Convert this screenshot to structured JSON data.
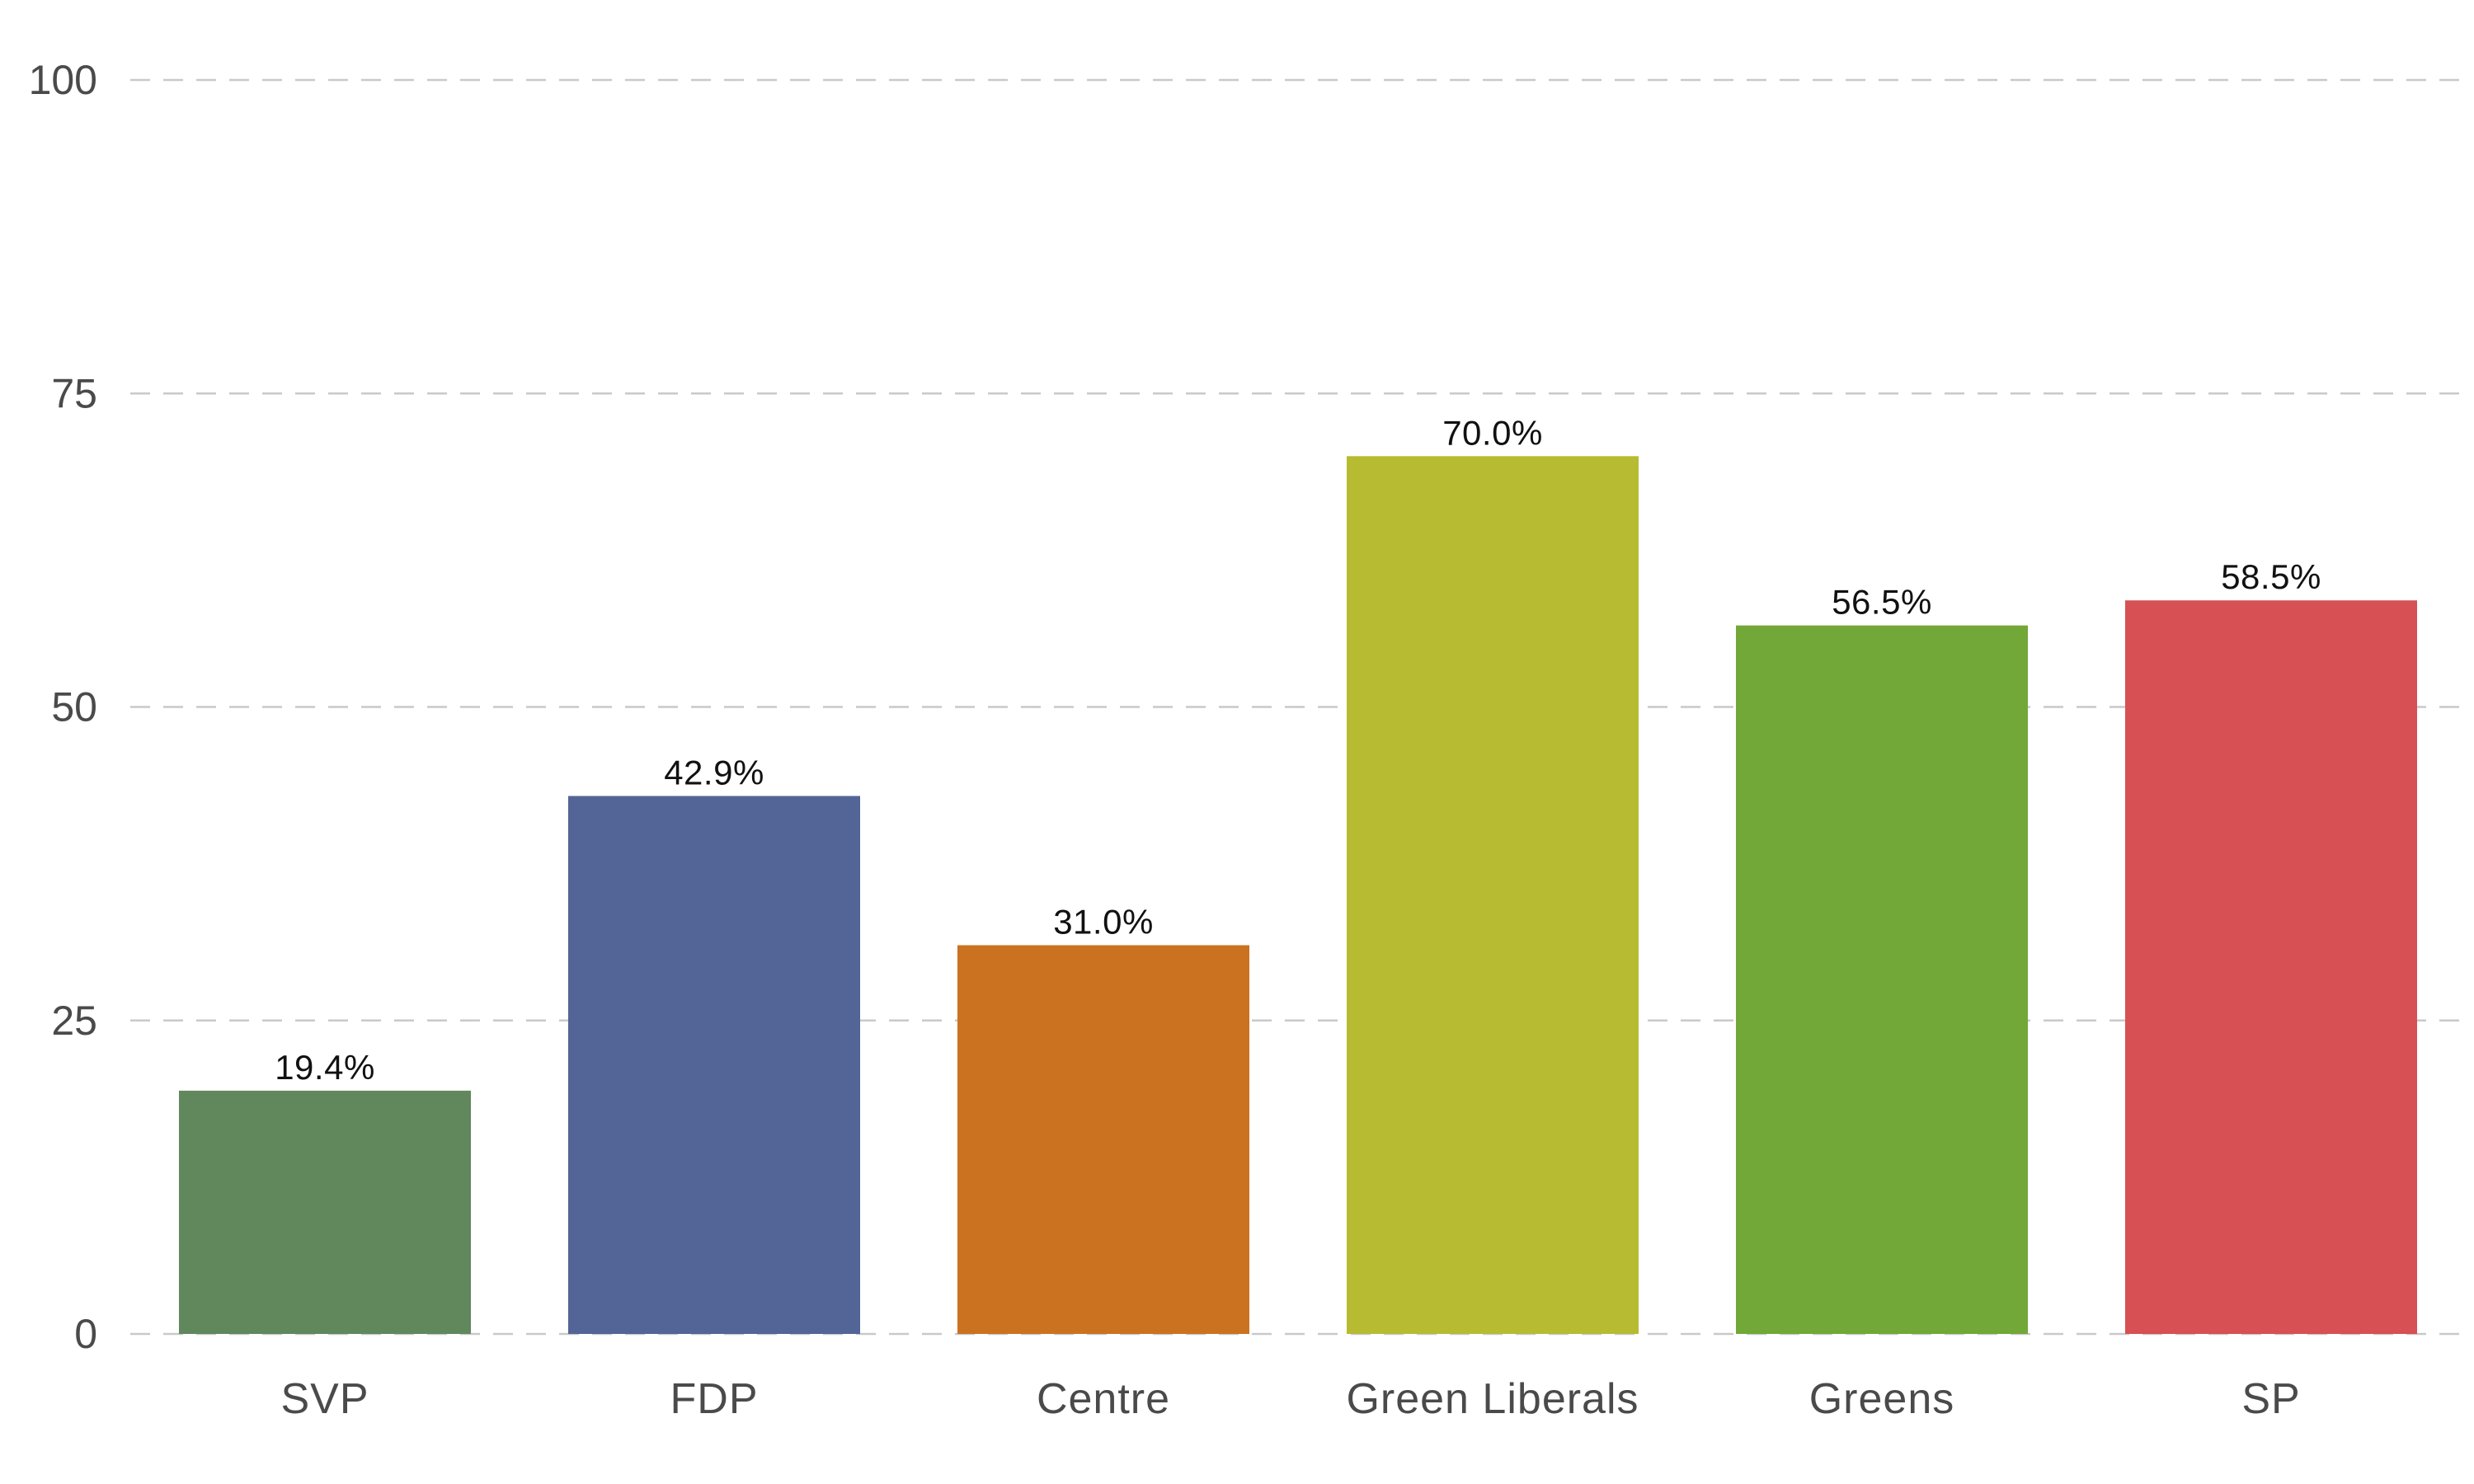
{
  "chart_data": {
    "type": "bar",
    "title": "",
    "xlabel": "",
    "ylabel": "",
    "categories": [
      "SVP",
      "FDP",
      "Centre",
      "Green Liberals",
      "Greens",
      "SP"
    ],
    "values": [
      19.4,
      42.9,
      31.0,
      70.0,
      56.5,
      58.5
    ],
    "data_labels": [
      "19.4%",
      "42.9%",
      "31.0%",
      "70.0%",
      "56.5%",
      "58.5%"
    ],
    "bar_colors": [
      "#61885d",
      "#536496",
      "#cb7221",
      "#b7bb31",
      "#72a837",
      "#d75054"
    ],
    "ylim": [
      0,
      100
    ],
    "yticks": [
      0,
      25,
      50,
      75,
      100
    ],
    "ytick_labels": [
      "0",
      "25",
      "50",
      "75",
      "100"
    ],
    "grid": true,
    "grid_style": "dashed horizontal",
    "legend": "none"
  }
}
